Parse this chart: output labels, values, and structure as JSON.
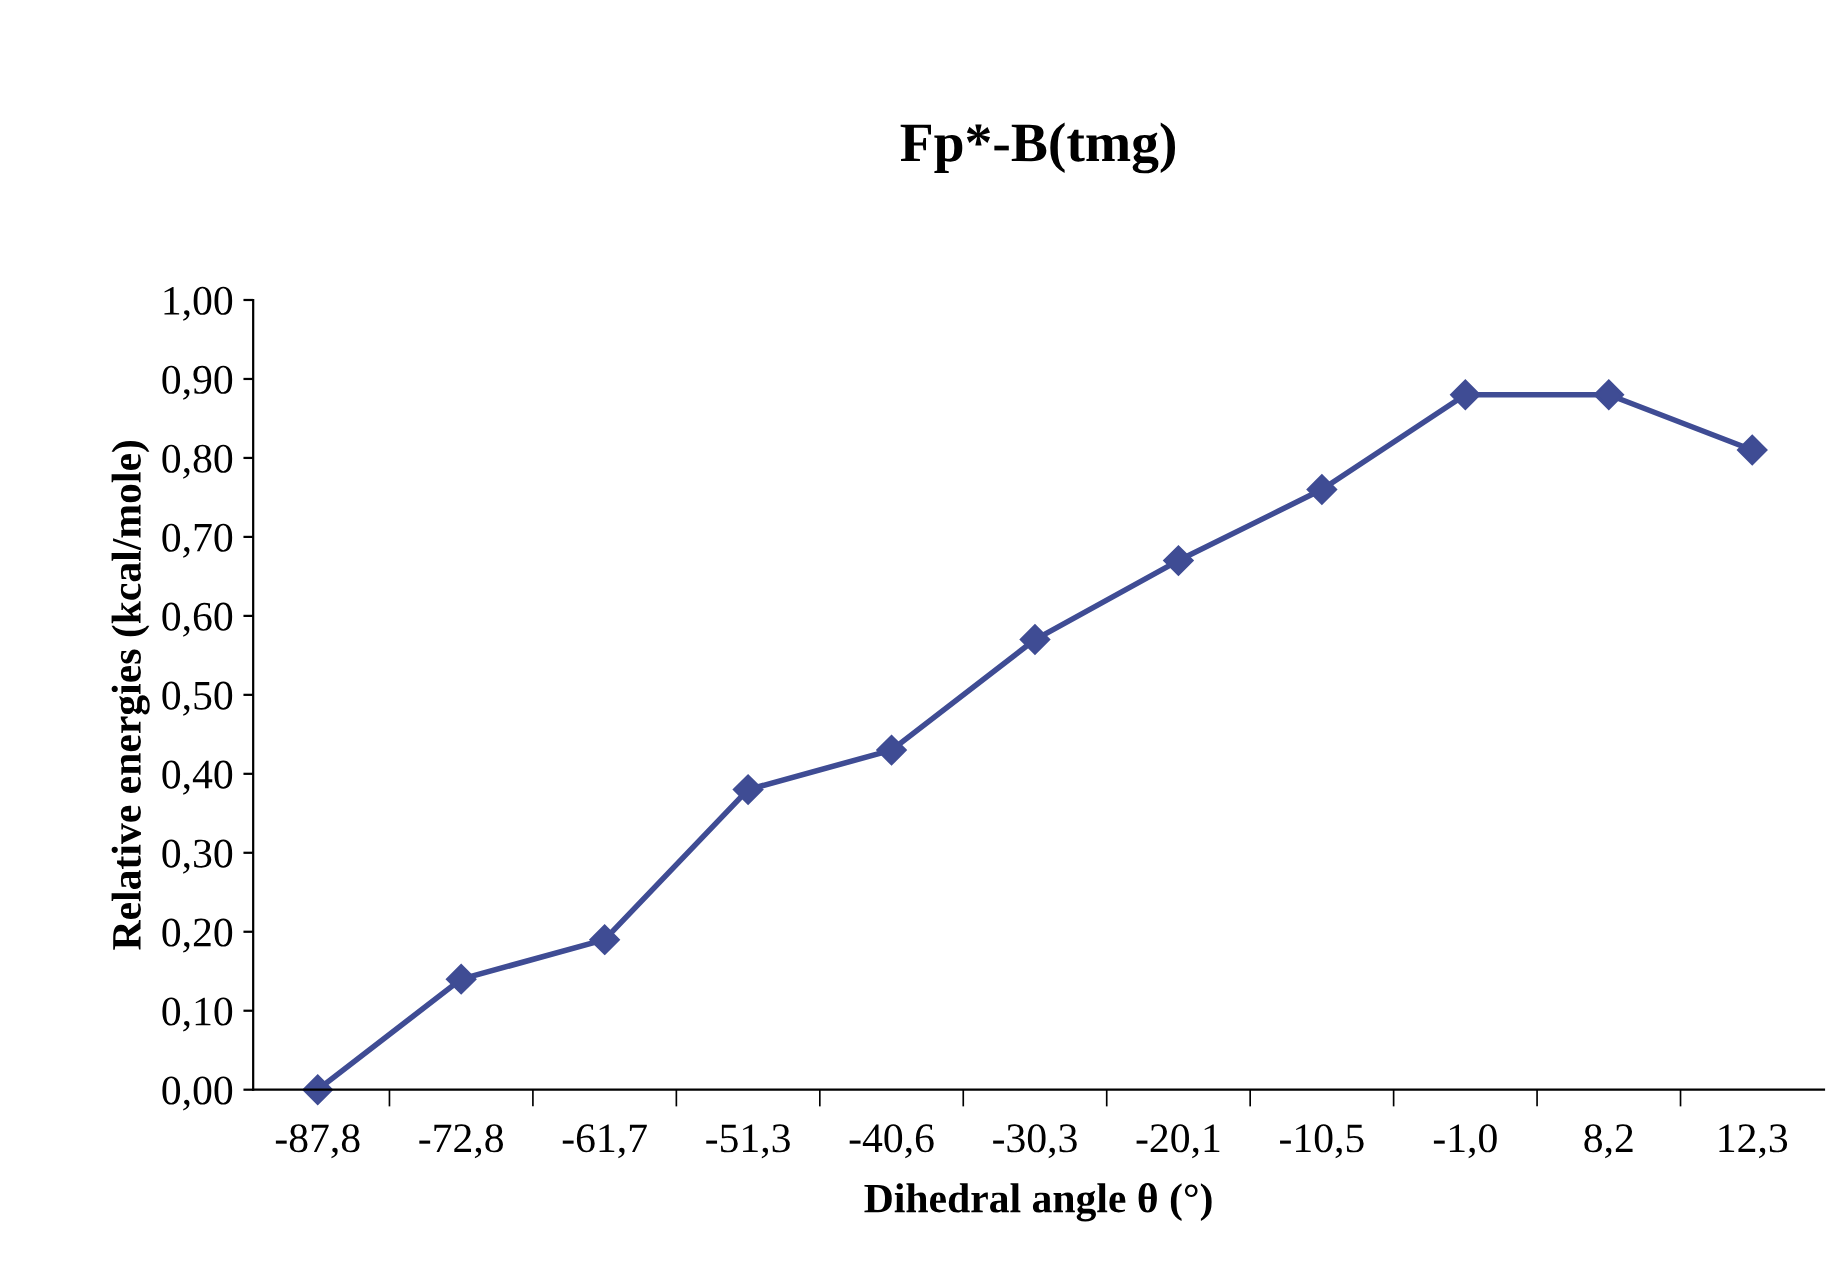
{
  "chart_data": {
    "type": "line",
    "title": "Fp*-B(tmg)",
    "xlabel": "Dihedral angle θ (°)",
    "ylabel": "Relative energies (kcal/mole)",
    "categories": [
      "-87,8",
      "-72,8",
      "-61,7",
      "-51,3",
      "-40,6",
      "-30,3",
      "-20,1",
      "-10,5",
      "-1,0",
      "8,2",
      "12,3"
    ],
    "series": [
      {
        "color": "#3f4c94",
        "values": [
          0.0,
          0.14,
          0.19,
          0.38,
          0.43,
          0.57,
          0.67,
          0.76,
          0.88,
          0.88,
          0.81
        ]
      }
    ],
    "ylim": [
      0,
      1
    ],
    "yticks": [
      {
        "value": 0,
        "label": "0,00"
      },
      {
        "value": 0.1,
        "label": "0,10"
      },
      {
        "value": 0.2,
        "label": "0,20"
      },
      {
        "value": 0.3,
        "label": "0,30"
      },
      {
        "value": 0.4,
        "label": "0,40"
      },
      {
        "value": 0.5,
        "label": "0,50"
      },
      {
        "value": 0.6,
        "label": "0,60"
      },
      {
        "value": 0.7,
        "label": "0,70"
      },
      {
        "value": 0.8,
        "label": "0,80"
      },
      {
        "value": 0.9,
        "label": "0,90"
      },
      {
        "value": 1,
        "label": "1,00"
      }
    ],
    "grid": false,
    "legend": false,
    "marker": "diamond",
    "line_style": "solid"
  }
}
